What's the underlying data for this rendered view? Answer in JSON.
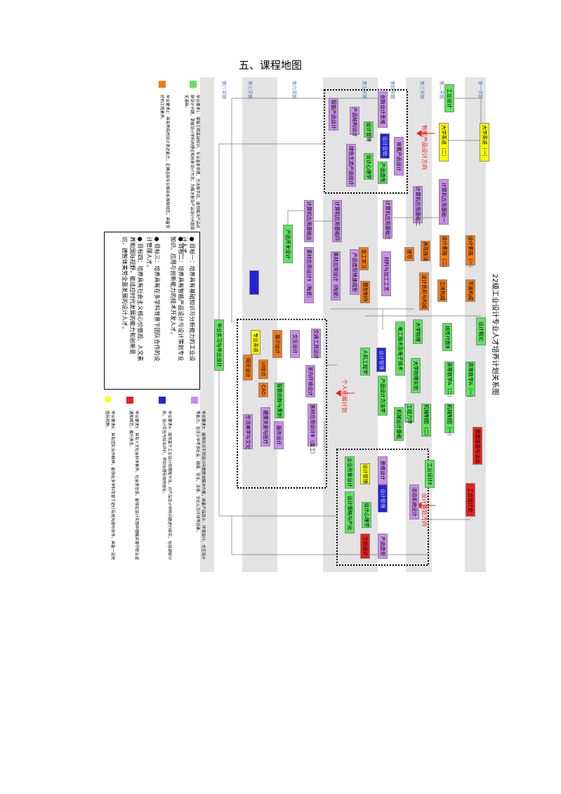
{
  "title": "五、课程地图",
  "diagram_title": "22级工业设计专业人才培养计划关系图",
  "semesters": [
    "第一学期",
    "第二学期",
    "第三学期",
    "第四学期",
    "第五学期",
    "第六学期",
    "第七学期",
    "第八学期"
  ],
  "courses": [
    "工业设计",
    "大学英语（一）",
    "大学英语（二）",
    "计算机应用基础一",
    "计算机应用基础二",
    "计算机应用基础三",
    "计算机应用基础四",
    "计算机应用基础五",
    "设计素描（一）",
    "设计素描（二）",
    "表现技法",
    "速写",
    "平面构成",
    "立体构成",
    "设计色彩与构成",
    "材料与加工工艺",
    "金工实习",
    "产品造型快速成型",
    "模型制作",
    "素材应用设计（陶瓷）",
    "素材应用设计Ⅱ（陶瓷）",
    "产品开发设计",
    "设计概论",
    "线性代数B",
    "高等数学A（一）",
    "高等数学A（二）",
    "大学物理",
    "大学物理实验",
    "电工技术及电子技术",
    "机械制图（一）",
    "机械制图（二）",
    "工程力学",
    "机械设计基础",
    "思想道德与法治",
    "工业设计史",
    "工业设计Ⅱ",
    "活动系统设计",
    "人机工程学",
    "设计管理",
    "产品设计方法学",
    "创新设计思维",
    "智能产品设计",
    "产品结构设计",
    "设计管理",
    "设计营销",
    "穿戴产品设计",
    "绿色生态产品设计",
    "设计心理学",
    "产品造型",
    "交通工具设计",
    "室内环境设计",
    "素材应用设计Ⅲ（金工）",
    "交互设计",
    "展示设计",
    "专业英语",
    "UI设计",
    "网页设计",
    "CAD",
    "智能创新与策划",
    "健康关爱与医疗",
    "生活美学与文化",
    "服务设计",
    "毕业实习与毕业设计",
    "思维设计",
    "设计管理",
    "企业形象设计",
    "设计管理",
    "设计策略与产出",
    "设计心理学",
    "文创设计",
    "产品造型"
  ],
  "annotations": [
    "智能产品设计方向",
    "设计策划方向",
    "个人拓展计划"
  ],
  "legend": [
    "毕业要求1：掌握工程基础知识、专业基本原理、方法和手段，能够解决产品创新设计问题，掌握设计学科的理论和创新设计方法，为解决复杂产品设计问题奠定基础。",
    "毕业要求2：具有熟练的设计表达能力，正确运用专业相关标准和规范，具备良好的工程素养。",
    "毕业要求3：能够针对不同设计问题提出解决方案，具备产品设计、环境设计、交互设计等能力，在设计中考虑社会、健康、安全、法律、文化以及环境等因素。",
    "毕业要求4：能够基于工业设计原理和方法，对产品设计中的问题进行研究，包括调研分析、设计实验与综合评价，得到合理有效的结论。",
    "毕业要求5：具有人文社会科学素养、社会责任感，能够在设计实践中理解并遵守职业道德和规范，履行责任。",
    "毕业要求6：具有团队合作精神，能够在多学科背景下进行有效沟通与协作，具备一定的国际视野。"
  ],
  "objectives": [
    "● 目标一：培养具有基础知识与分析能力的工业设计人才。",
    "● 目标二：培养具有智能产品设计与设计策划专业知识、应用与创新能力的技术开发人才。",
    "● 目标三：培养具有在多学科背景下团队合作的设计管理人才。",
    "● 目标四：培养具有社会主义核心价值观、人文素养和国际视野，能适应时代发展的能力和创新意识，德智体美劳全面发展的设计人才。"
  ]
}
